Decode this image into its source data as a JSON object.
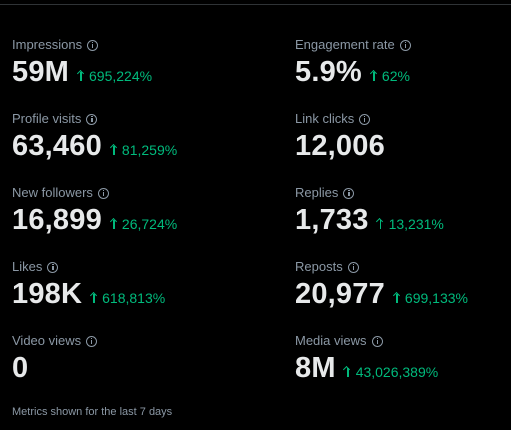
{
  "metrics": [
    {
      "label": "Impressions",
      "value": "59M",
      "change": "695,224%"
    },
    {
      "label": "Engagement rate",
      "value": "5.9%",
      "change": "62%"
    },
    {
      "label": "Profile visits",
      "value": "63,460",
      "change": "81,259%"
    },
    {
      "label": "Link clicks",
      "value": "12,006",
      "change": null
    },
    {
      "label": "New followers",
      "value": "16,899",
      "change": "26,724%"
    },
    {
      "label": "Replies",
      "value": "1,733",
      "change": "13,231%"
    },
    {
      "label": "Likes",
      "value": "198K",
      "change": "618,813%"
    },
    {
      "label": "Reposts",
      "value": "20,977",
      "change": "699,133%"
    },
    {
      "label": "Video views",
      "value": "0",
      "change": null
    },
    {
      "label": "Media views",
      "value": "8M",
      "change": "43,026,389%"
    }
  ],
  "footer": {
    "note": "Metrics shown for the last 7 days"
  },
  "icons": {
    "info": "info-icon",
    "trend_up": "arrow-up-icon"
  },
  "colors": {
    "background": "#000000",
    "primary_text": "#e7e9ea",
    "secondary_text": "#8b98a5",
    "positive": "#00ba7c"
  }
}
